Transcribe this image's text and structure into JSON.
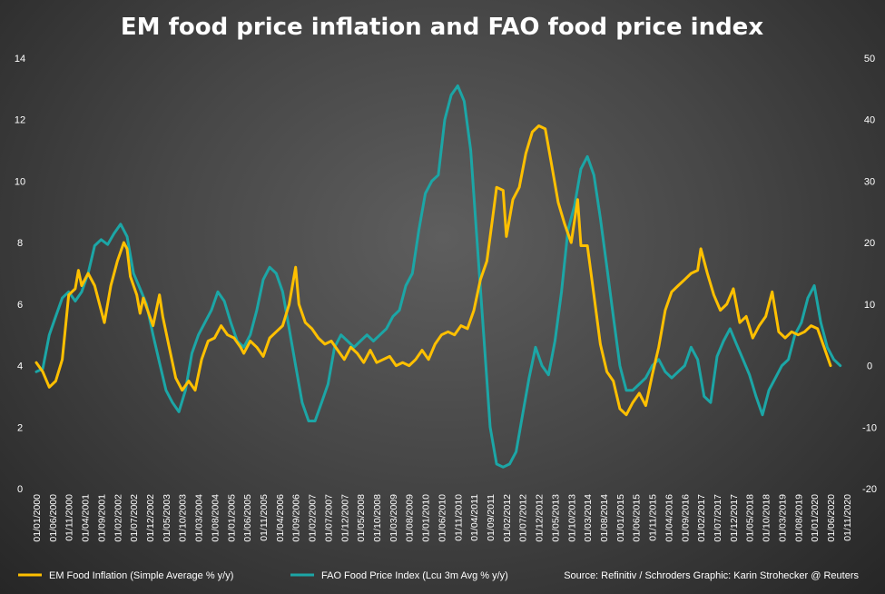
{
  "chart_data": {
    "type": "line",
    "title": "EM food price inflation and FAO food price index",
    "source": "Source: Refinitiv / Schroders  Graphic: Karin Strohecker @ Reuters",
    "x_start": "2000-01",
    "x_end": "2021-01",
    "y_left": {
      "range": [
        0,
        14
      ],
      "ticks": [
        "0",
        "2",
        "4",
        "6",
        "8",
        "10",
        "12",
        "14"
      ]
    },
    "y_right": {
      "range": [
        -20,
        50
      ],
      "ticks": [
        "-20",
        "-10",
        "0",
        "10",
        "20",
        "30",
        "40",
        "50"
      ]
    },
    "x_ticks": [
      "01/01/2000",
      "01/06/2000",
      "01/11/2000",
      "01/04/2001",
      "01/09/2001",
      "01/02/2002",
      "01/07/2002",
      "01/12/2002",
      "01/05/2003",
      "01/10/2003",
      "01/03/2004",
      "01/08/2004",
      "01/01/2005",
      "01/06/2005",
      "01/11/2005",
      "01/04/2006",
      "01/09/2006",
      "01/02/2007",
      "01/07/2007",
      "01/12/2007",
      "01/05/2008",
      "01/10/2008",
      "01/03/2009",
      "01/08/2009",
      "01/01/2010",
      "01/06/2010",
      "01/11/2010",
      "01/04/2011",
      "01/09/2011",
      "01/02/2012",
      "01/07/2012",
      "01/12/2012",
      "01/05/2013",
      "01/10/2013",
      "01/03/2014",
      "01/08/2014",
      "01/01/2015",
      "01/06/2015",
      "01/11/2015",
      "01/04/2016",
      "01/09/2016",
      "01/02/2017",
      "01/07/2017",
      "01/12/2017",
      "01/05/2018",
      "01/10/2018",
      "01/03/2019",
      "01/08/2019",
      "01/01/2020",
      "01/06/2020",
      "01/11/2020"
    ],
    "series": [
      {
        "name": "EM Food Inflation (Simple Average % y/y)",
        "axis": "left",
        "color": "#FFC000",
        "points": [
          [
            "2000-01",
            4.1
          ],
          [
            "2000-03",
            3.8
          ],
          [
            "2000-05",
            3.3
          ],
          [
            "2000-07",
            3.5
          ],
          [
            "2000-09",
            4.2
          ],
          [
            "2000-11",
            6.3
          ],
          [
            "2001-01",
            6.5
          ],
          [
            "2001-02",
            7.1
          ],
          [
            "2001-03",
            6.6
          ],
          [
            "2001-05",
            7.0
          ],
          [
            "2001-07",
            6.6
          ],
          [
            "2001-09",
            5.8
          ],
          [
            "2001-10",
            5.4
          ],
          [
            "2001-12",
            6.6
          ],
          [
            "2002-02",
            7.4
          ],
          [
            "2002-04",
            8.0
          ],
          [
            "2002-05",
            7.8
          ],
          [
            "2002-06",
            6.9
          ],
          [
            "2002-08",
            6.3
          ],
          [
            "2002-09",
            5.7
          ],
          [
            "2002-10",
            6.2
          ],
          [
            "2002-12",
            5.6
          ],
          [
            "2003-01",
            5.3
          ],
          [
            "2003-03",
            6.3
          ],
          [
            "2003-04",
            5.6
          ],
          [
            "2003-06",
            4.6
          ],
          [
            "2003-08",
            3.6
          ],
          [
            "2003-10",
            3.2
          ],
          [
            "2003-12",
            3.5
          ],
          [
            "2004-02",
            3.2
          ],
          [
            "2004-04",
            4.2
          ],
          [
            "2004-06",
            4.8
          ],
          [
            "2004-08",
            4.9
          ],
          [
            "2004-10",
            5.3
          ],
          [
            "2004-12",
            5.0
          ],
          [
            "2005-02",
            4.9
          ],
          [
            "2005-04",
            4.6
          ],
          [
            "2005-05",
            4.4
          ],
          [
            "2005-07",
            4.8
          ],
          [
            "2005-09",
            4.6
          ],
          [
            "2005-11",
            4.3
          ],
          [
            "2006-01",
            4.9
          ],
          [
            "2006-03",
            5.1
          ],
          [
            "2006-05",
            5.3
          ],
          [
            "2006-07",
            6.0
          ],
          [
            "2006-09",
            7.2
          ],
          [
            "2006-10",
            6.0
          ],
          [
            "2006-12",
            5.4
          ],
          [
            "2007-02",
            5.2
          ],
          [
            "2007-04",
            4.9
          ],
          [
            "2007-06",
            4.7
          ],
          [
            "2007-08",
            4.8
          ],
          [
            "2007-10",
            4.5
          ],
          [
            "2007-12",
            4.2
          ],
          [
            "2008-02",
            4.6
          ],
          [
            "2008-04",
            4.4
          ],
          [
            "2008-06",
            4.1
          ],
          [
            "2008-08",
            4.5
          ],
          [
            "2008-10",
            4.1
          ],
          [
            "2008-12",
            4.2
          ],
          [
            "2009-02",
            4.3
          ],
          [
            "2009-04",
            4.0
          ],
          [
            "2009-06",
            4.1
          ],
          [
            "2009-08",
            4.0
          ],
          [
            "2009-10",
            4.2
          ],
          [
            "2009-12",
            4.5
          ],
          [
            "2010-02",
            4.2
          ],
          [
            "2010-04",
            4.7
          ],
          [
            "2010-06",
            5.0
          ],
          [
            "2010-08",
            5.1
          ],
          [
            "2010-10",
            5.0
          ],
          [
            "2010-12",
            5.3
          ],
          [
            "2011-02",
            5.2
          ],
          [
            "2011-04",
            5.8
          ],
          [
            "2011-06",
            6.8
          ],
          [
            "2011-08",
            7.4
          ],
          [
            "2011-10",
            9.0
          ],
          [
            "2011-11",
            9.8
          ],
          [
            "2012-01",
            9.7
          ],
          [
            "2012-02",
            8.2
          ],
          [
            "2012-04",
            9.4
          ],
          [
            "2012-06",
            9.8
          ],
          [
            "2012-08",
            10.9
          ],
          [
            "2012-10",
            11.6
          ],
          [
            "2012-12",
            11.8
          ],
          [
            "2013-02",
            11.7
          ],
          [
            "2013-04",
            10.5
          ],
          [
            "2013-06",
            9.3
          ],
          [
            "2013-08",
            8.6
          ],
          [
            "2013-10",
            8.0
          ],
          [
            "2013-12",
            9.4
          ],
          [
            "2014-01",
            7.9
          ],
          [
            "2014-03",
            7.9
          ],
          [
            "2014-05",
            6.3
          ],
          [
            "2014-07",
            4.7
          ],
          [
            "2014-09",
            3.8
          ],
          [
            "2014-11",
            3.5
          ],
          [
            "2015-01",
            2.6
          ],
          [
            "2015-03",
            2.4
          ],
          [
            "2015-05",
            2.8
          ],
          [
            "2015-07",
            3.1
          ],
          [
            "2015-09",
            2.7
          ],
          [
            "2015-11",
            3.7
          ],
          [
            "2016-01",
            4.6
          ],
          [
            "2016-03",
            5.8
          ],
          [
            "2016-05",
            6.4
          ],
          [
            "2016-07",
            6.6
          ],
          [
            "2016-09",
            6.8
          ],
          [
            "2016-11",
            7.0
          ],
          [
            "2017-01",
            7.1
          ],
          [
            "2017-02",
            7.8
          ],
          [
            "2017-04",
            7.0
          ],
          [
            "2017-06",
            6.3
          ],
          [
            "2017-08",
            5.8
          ],
          [
            "2017-10",
            6.0
          ],
          [
            "2017-12",
            6.5
          ],
          [
            "2018-02",
            5.4
          ],
          [
            "2018-04",
            5.6
          ],
          [
            "2018-06",
            4.9
          ],
          [
            "2018-08",
            5.3
          ],
          [
            "2018-10",
            5.6
          ],
          [
            "2018-12",
            6.4
          ],
          [
            "2019-02",
            5.1
          ],
          [
            "2019-04",
            4.9
          ],
          [
            "2019-06",
            5.1
          ],
          [
            "2019-08",
            5.0
          ],
          [
            "2019-10",
            5.1
          ],
          [
            "2019-12",
            5.3
          ],
          [
            "2020-02",
            5.2
          ],
          [
            "2020-04",
            4.6
          ],
          [
            "2020-06",
            4.0
          ]
        ]
      },
      {
        "name": "FAO Food Price Index (Lcu 3m Avg % y/y)",
        "axis": "right",
        "color": "#1CA6A6",
        "points": [
          [
            "2000-01",
            -1.0
          ],
          [
            "2000-03",
            -0.5
          ],
          [
            "2000-05",
            5.0
          ],
          [
            "2000-07",
            8.0
          ],
          [
            "2000-09",
            11.0
          ],
          [
            "2000-11",
            12.0
          ],
          [
            "2001-01",
            10.5
          ],
          [
            "2001-03",
            12.0
          ],
          [
            "2001-05",
            15.0
          ],
          [
            "2001-07",
            19.5
          ],
          [
            "2001-09",
            20.5
          ],
          [
            "2001-11",
            19.7
          ],
          [
            "2002-01",
            21.5
          ],
          [
            "2002-03",
            23.0
          ],
          [
            "2002-05",
            21.0
          ],
          [
            "2002-07",
            15.0
          ],
          [
            "2002-09",
            12.5
          ],
          [
            "2002-11",
            10.0
          ],
          [
            "2003-01",
            5.0
          ],
          [
            "2003-03",
            0.5
          ],
          [
            "2003-05",
            -4.0
          ],
          [
            "2003-07",
            -6.0
          ],
          [
            "2003-09",
            -7.5
          ],
          [
            "2003-11",
            -4.0
          ],
          [
            "2004-01",
            2.0
          ],
          [
            "2004-03",
            5.0
          ],
          [
            "2004-05",
            7.0
          ],
          [
            "2004-07",
            9.0
          ],
          [
            "2004-09",
            12.0
          ],
          [
            "2004-11",
            10.5
          ],
          [
            "2005-01",
            7.0
          ],
          [
            "2005-03",
            4.0
          ],
          [
            "2005-05",
            3.0
          ],
          [
            "2005-07",
            5.0
          ],
          [
            "2005-09",
            9.0
          ],
          [
            "2005-11",
            14.0
          ],
          [
            "2006-01",
            16.0
          ],
          [
            "2006-03",
            15.0
          ],
          [
            "2006-05",
            12.0
          ],
          [
            "2006-07",
            6.0
          ],
          [
            "2006-09",
            0.0
          ],
          [
            "2006-11",
            -6.0
          ],
          [
            "2007-01",
            -9.0
          ],
          [
            "2007-03",
            -9.0
          ],
          [
            "2007-05",
            -6.0
          ],
          [
            "2007-07",
            -3.0
          ],
          [
            "2007-09",
            3.0
          ],
          [
            "2007-11",
            5.0
          ],
          [
            "2008-01",
            4.0
          ],
          [
            "2008-03",
            3.0
          ],
          [
            "2008-05",
            4.0
          ],
          [
            "2008-07",
            5.0
          ],
          [
            "2008-09",
            4.0
          ],
          [
            "2008-11",
            5.0
          ],
          [
            "2009-01",
            6.0
          ],
          [
            "2009-03",
            8.0
          ],
          [
            "2009-05",
            9.0
          ],
          [
            "2009-07",
            13.0
          ],
          [
            "2009-09",
            15.0
          ],
          [
            "2009-11",
            22.0
          ],
          [
            "2010-01",
            28.0
          ],
          [
            "2010-03",
            30.0
          ],
          [
            "2010-05",
            31.0
          ],
          [
            "2010-07",
            40.0
          ],
          [
            "2010-09",
            44.0
          ],
          [
            "2010-11",
            45.5
          ],
          [
            "2011-01",
            43.0
          ],
          [
            "2011-03",
            35.0
          ],
          [
            "2011-05",
            20.0
          ],
          [
            "2011-07",
            5.0
          ],
          [
            "2011-09",
            -10.0
          ],
          [
            "2011-11",
            -16.0
          ],
          [
            "2012-01",
            -16.5
          ],
          [
            "2012-03",
            -16.0
          ],
          [
            "2012-05",
            -14.0
          ],
          [
            "2012-07",
            -8.0
          ],
          [
            "2012-09",
            -2.0
          ],
          [
            "2012-11",
            3.0
          ],
          [
            "2013-01",
            0.0
          ],
          [
            "2013-03",
            -1.5
          ],
          [
            "2013-05",
            4.0
          ],
          [
            "2013-07",
            12.0
          ],
          [
            "2013-09",
            22.0
          ],
          [
            "2013-11",
            26.0
          ],
          [
            "2014-01",
            32.0
          ],
          [
            "2014-03",
            34.0
          ],
          [
            "2014-05",
            31.0
          ],
          [
            "2014-07",
            24.0
          ],
          [
            "2014-09",
            16.0
          ],
          [
            "2014-11",
            8.0
          ],
          [
            "2015-01",
            0.0
          ],
          [
            "2015-03",
            -4.0
          ],
          [
            "2015-05",
            -4.0
          ],
          [
            "2015-07",
            -3.0
          ],
          [
            "2015-09",
            -2.0
          ],
          [
            "2015-11",
            0.0
          ],
          [
            "2016-01",
            1.0
          ],
          [
            "2016-03",
            -1.0
          ],
          [
            "2016-05",
            -2.0
          ],
          [
            "2016-07",
            -1.0
          ],
          [
            "2016-09",
            0.0
          ],
          [
            "2016-11",
            3.0
          ],
          [
            "2017-01",
            1.0
          ],
          [
            "2017-03",
            -5.0
          ],
          [
            "2017-05",
            -6.0
          ],
          [
            "2017-07",
            1.5
          ],
          [
            "2017-09",
            4.0
          ],
          [
            "2017-11",
            6.0
          ],
          [
            "2018-01",
            3.5
          ],
          [
            "2018-03",
            1.0
          ],
          [
            "2018-05",
            -1.5
          ],
          [
            "2018-07",
            -5.0
          ],
          [
            "2018-09",
            -8.0
          ],
          [
            "2018-11",
            -4.0
          ],
          [
            "2019-01",
            -2.0
          ],
          [
            "2019-03",
            0.0
          ],
          [
            "2019-05",
            1.0
          ],
          [
            "2019-07",
            5.0
          ],
          [
            "2019-09",
            7.0
          ],
          [
            "2019-11",
            11.0
          ],
          [
            "2020-01",
            13.0
          ],
          [
            "2020-03",
            7.0
          ],
          [
            "2020-05",
            3.0
          ],
          [
            "2020-07",
            1.0
          ],
          [
            "2020-09",
            0.0
          ]
        ]
      }
    ]
  }
}
